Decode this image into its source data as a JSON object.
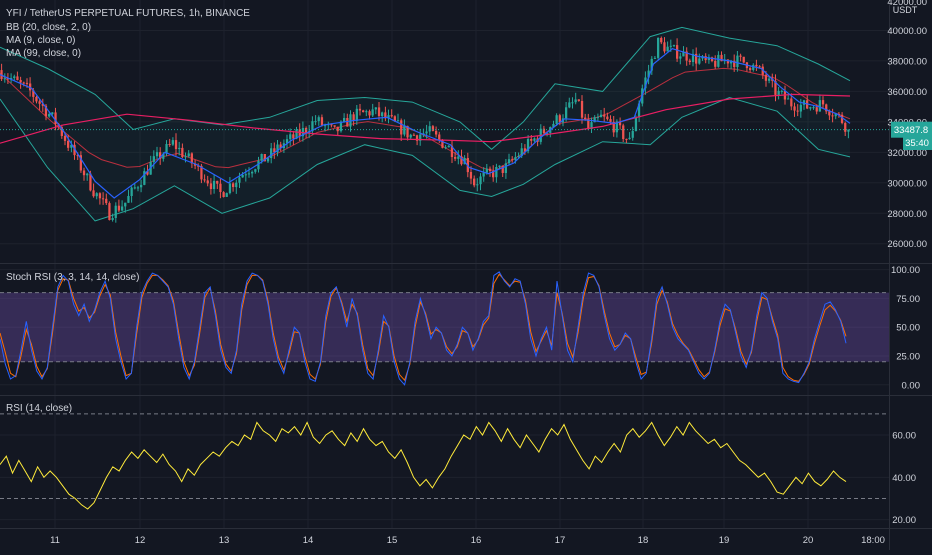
{
  "legend": {
    "title": "YFI / TetherUS PERPETUAL FUTURES, 1h, BINANCE",
    "bb": "BB (20, close, 2, 0)",
    "ma9": "MA (9, close, 0)",
    "ma99": "MA (99, close, 0)",
    "stoch": "Stoch RSI (3, 3, 14, 14, close)",
    "rsi": "RSI (14, close)"
  },
  "price_scale": {
    "unit": "USDT",
    "last_price": "33487.8",
    "countdown": "35:40"
  },
  "colors": {
    "background": "#131722",
    "grid": "#1e222d",
    "up": "#26a69a",
    "down": "#ef5350",
    "bb_band": "#26a69a",
    "bb_basis": "#f23645",
    "ma9": "#2962ff",
    "ma99": "#e91e63",
    "stoch_k": "#2962ff",
    "stoch_d": "#ff6d00",
    "stoch_zone": "#7e57c2",
    "rsi_line": "#ffeb3b",
    "axis_text": "#d1d4dc"
  },
  "chart_data": [
    {
      "type": "candlestick",
      "title": "YFI / TetherUS PERPETUAL FUTURES, 1h, BINANCE",
      "ylabel": "USDT",
      "ylim": [
        24800,
        42000
      ],
      "y_ticks": [
        26000,
        28000,
        30000,
        32000,
        34000,
        36000,
        38000,
        40000
      ],
      "y_tick_labels": [
        "26000.00",
        "28000.00",
        "30000.00",
        "32000.00",
        "34000.00",
        "36000.00",
        "38000.00",
        "40000.00"
      ],
      "y_top_partial_label": "42000.00",
      "x_ticks": [
        "11",
        "12",
        "13",
        "14",
        "15",
        "16",
        "17",
        "18",
        "19",
        "20",
        "18:00"
      ],
      "close_path": [
        [
          0,
          37400
        ],
        [
          10,
          36000
        ],
        [
          18,
          34000
        ],
        [
          24,
          31800
        ],
        [
          30,
          29500
        ],
        [
          35,
          28000
        ],
        [
          40,
          28700
        ],
        [
          48,
          31200
        ],
        [
          55,
          32600
        ],
        [
          62,
          31100
        ],
        [
          70,
          29300
        ],
        [
          78,
          30800
        ],
        [
          85,
          31700
        ],
        [
          90,
          32600
        ],
        [
          95,
          33200
        ],
        [
          100,
          34100
        ],
        [
          106,
          33300
        ],
        [
          112,
          34400
        ],
        [
          118,
          34700
        ],
        [
          124,
          34000
        ],
        [
          130,
          33100
        ],
        [
          136,
          33300
        ],
        [
          142,
          32300
        ],
        [
          147,
          31500
        ],
        [
          150,
          30000
        ],
        [
          154,
          30500
        ],
        [
          160,
          31000
        ],
        [
          166,
          32300
        ],
        [
          172,
          33400
        ],
        [
          178,
          34500
        ],
        [
          182,
          35400
        ],
        [
          186,
          33500
        ],
        [
          190,
          34300
        ],
        [
          195,
          33600
        ],
        [
          199,
          32700
        ],
        [
          203,
          36200
        ],
        [
          208,
          39200
        ],
        [
          212,
          38700
        ],
        [
          218,
          38300
        ],
        [
          224,
          37800
        ],
        [
          230,
          38100
        ],
        [
          236,
          37900
        ],
        [
          240,
          37300
        ],
        [
          245,
          36000
        ],
        [
          250,
          35200
        ],
        [
          255,
          35000
        ],
        [
          260,
          35200
        ],
        [
          266,
          34100
        ],
        [
          268,
          33490
        ]
      ],
      "ma9_path": [
        [
          0,
          37100
        ],
        [
          10,
          36200
        ],
        [
          20,
          33400
        ],
        [
          30,
          30100
        ],
        [
          36,
          29000
        ],
        [
          44,
          30200
        ],
        [
          52,
          32000
        ],
        [
          62,
          31200
        ],
        [
          72,
          30000
        ],
        [
          82,
          31300
        ],
        [
          92,
          32800
        ],
        [
          102,
          33800
        ],
        [
          112,
          34100
        ],
        [
          122,
          34300
        ],
        [
          132,
          33300
        ],
        [
          142,
          32500
        ],
        [
          148,
          31000
        ],
        [
          154,
          30600
        ],
        [
          162,
          31300
        ],
        [
          170,
          32900
        ],
        [
          178,
          34200
        ],
        [
          186,
          34100
        ],
        [
          194,
          33900
        ],
        [
          200,
          34300
        ],
        [
          206,
          37800
        ],
        [
          212,
          38800
        ],
        [
          220,
          38300
        ],
        [
          230,
          38000
        ],
        [
          240,
          37500
        ],
        [
          246,
          36300
        ],
        [
          252,
          35300
        ],
        [
          258,
          35000
        ],
        [
          264,
          34500
        ],
        [
          268,
          33900
        ]
      ],
      "ma99_path": [
        [
          0,
          32600
        ],
        [
          20,
          33800
        ],
        [
          40,
          34500
        ],
        [
          60,
          34100
        ],
        [
          80,
          33600
        ],
        [
          100,
          33200
        ],
        [
          120,
          32900
        ],
        [
          140,
          32800
        ],
        [
          155,
          32700
        ],
        [
          170,
          33100
        ],
        [
          190,
          33700
        ],
        [
          210,
          34800
        ],
        [
          230,
          35500
        ],
        [
          250,
          35800
        ],
        [
          268,
          35700
        ]
      ],
      "bb_upper_path": [
        [
          0,
          38900
        ],
        [
          15,
          37500
        ],
        [
          30,
          35800
        ],
        [
          42,
          33500
        ],
        [
          55,
          34200
        ],
        [
          70,
          33800
        ],
        [
          85,
          34300
        ],
        [
          100,
          35400
        ],
        [
          115,
          35600
        ],
        [
          130,
          35300
        ],
        [
          145,
          34000
        ],
        [
          155,
          32200
        ],
        [
          165,
          34000
        ],
        [
          175,
          36500
        ],
        [
          190,
          36000
        ],
        [
          205,
          39600
        ],
        [
          215,
          40200
        ],
        [
          230,
          39500
        ],
        [
          245,
          39000
        ],
        [
          258,
          37800
        ],
        [
          268,
          36700
        ]
      ],
      "bb_lower_path": [
        [
          0,
          35500
        ],
        [
          15,
          31000
        ],
        [
          30,
          27500
        ],
        [
          42,
          28300
        ],
        [
          55,
          29800
        ],
        [
          70,
          28000
        ],
        [
          85,
          29000
        ],
        [
          100,
          31200
        ],
        [
          115,
          32500
        ],
        [
          130,
          31800
        ],
        [
          145,
          29500
        ],
        [
          155,
          29100
        ],
        [
          165,
          29900
        ],
        [
          175,
          31200
        ],
        [
          190,
          32700
        ],
        [
          205,
          32500
        ],
        [
          215,
          34300
        ],
        [
          230,
          35600
        ],
        [
          245,
          34700
        ],
        [
          258,
          32200
        ],
        [
          268,
          31700
        ]
      ]
    },
    {
      "type": "line",
      "title": "Stoch RSI (3, 3, 14, 14, close)",
      "ylim": [
        -8,
        104
      ],
      "y_ticks": [
        0,
        25,
        50,
        75,
        100
      ],
      "y_tick_labels": [
        "0.00",
        "25.00",
        "50.00",
        "75.00",
        "100.00"
      ],
      "band": [
        20,
        80
      ],
      "series": [
        {
          "name": "K",
          "values": [
            40,
            18,
            5,
            8,
            30,
            55,
            30,
            12,
            5,
            15,
            50,
            85,
            95,
            90,
            70,
            60,
            70,
            55,
            65,
            80,
            90,
            75,
            40,
            20,
            5,
            10,
            50,
            80,
            90,
            97,
            95,
            90,
            85,
            70,
            40,
            15,
            5,
            20,
            50,
            80,
            85,
            60,
            30,
            15,
            10,
            30,
            70,
            90,
            97,
            95,
            90,
            70,
            40,
            20,
            10,
            30,
            50,
            45,
            20,
            5,
            3,
            20,
            60,
            80,
            85,
            70,
            50,
            75,
            60,
            30,
            10,
            5,
            30,
            60,
            50,
            20,
            5,
            0,
            20,
            55,
            75,
            60,
            40,
            50,
            45,
            30,
            25,
            35,
            50,
            45,
            30,
            40,
            55,
            60,
            95,
            98,
            90,
            85,
            92,
            90,
            70,
            40,
            25,
            40,
            50,
            30,
            90,
            60,
            30,
            20,
            50,
            80,
            97,
            95,
            85,
            60,
            40,
            30,
            35,
            45,
            40,
            20,
            5,
            10,
            40,
            75,
            85,
            70,
            50,
            40,
            35,
            30,
            20,
            10,
            5,
            10,
            30,
            55,
            70,
            65,
            45,
            25,
            15,
            30,
            60,
            80,
            75,
            55,
            40,
            10,
            5,
            3,
            2,
            10,
            20,
            40,
            55,
            70,
            72,
            65,
            55,
            36
          ]
        },
        {
          "name": "D",
          "values": [
            45,
            28,
            10,
            7,
            25,
            48,
            35,
            16,
            7,
            14,
            45,
            82,
            92,
            91,
            75,
            64,
            67,
            58,
            63,
            77,
            87,
            78,
            46,
            25,
            8,
            10,
            44,
            76,
            88,
            95,
            95,
            91,
            86,
            73,
            45,
            20,
            8,
            17,
            45,
            76,
            84,
            64,
            35,
            18,
            12,
            27,
            65,
            87,
            95,
            95,
            91,
            73,
            45,
            24,
            13,
            27,
            46,
            45,
            25,
            9,
            5,
            18,
            55,
            77,
            84,
            72,
            55,
            70,
            62,
            35,
            14,
            8,
            27,
            55,
            51,
            25,
            9,
            4,
            18,
            50,
            72,
            62,
            44,
            48,
            45,
            33,
            27,
            33,
            47,
            45,
            33,
            39,
            52,
            58,
            88,
            96,
            91,
            86,
            90,
            89,
            73,
            46,
            29,
            38,
            47,
            34,
            80,
            62,
            36,
            24,
            45,
            75,
            93,
            94,
            86,
            64,
            45,
            33,
            35,
            43,
            40,
            24,
            9,
            11,
            36,
            70,
            82,
            72,
            53,
            43,
            36,
            31,
            22,
            13,
            7,
            11,
            28,
            51,
            66,
            64,
            48,
            29,
            18,
            28,
            55,
            76,
            74,
            58,
            43,
            15,
            7,
            4,
            3,
            9,
            18,
            36,
            51,
            65,
            69,
            64,
            56,
            42
          ]
        }
      ]
    },
    {
      "type": "line",
      "title": "RSI (14, close)",
      "ylim": [
        16.5,
        78
      ],
      "y_ticks": [
        20,
        40,
        60
      ],
      "y_tick_labels": [
        "20.00",
        "40.00",
        "60.00"
      ],
      "levels": [
        30,
        70
      ],
      "series": [
        {
          "name": "RSI",
          "values": [
            46,
            50,
            42,
            48,
            43,
            38,
            45,
            40,
            43,
            40,
            36,
            32,
            30,
            27,
            25,
            28,
            34,
            40,
            45,
            43,
            48,
            52,
            49,
            53,
            50,
            47,
            51,
            46,
            43,
            38,
            44,
            41,
            46,
            49,
            52,
            50,
            54,
            57,
            55,
            60,
            58,
            66,
            62,
            60,
            57,
            63,
            61,
            64,
            60,
            66,
            59,
            56,
            60,
            62,
            58,
            55,
            61,
            57,
            63,
            58,
            55,
            57,
            52,
            49,
            53,
            47,
            40,
            36,
            39,
            35,
            40,
            44,
            50,
            55,
            60,
            58,
            64,
            60,
            66,
            62,
            57,
            63,
            58,
            54,
            60,
            56,
            52,
            58,
            63,
            60,
            65,
            58,
            53,
            48,
            44,
            50,
            47,
            52,
            56,
            52,
            60,
            63,
            59,
            62,
            66,
            60,
            55,
            59,
            64,
            60,
            66,
            62,
            59,
            56,
            58,
            54,
            56,
            52,
            48,
            46,
            43,
            40,
            42,
            38,
            33,
            32,
            36,
            40,
            37,
            42,
            38,
            36,
            39,
            43,
            40,
            38
          ]
        }
      ]
    }
  ]
}
